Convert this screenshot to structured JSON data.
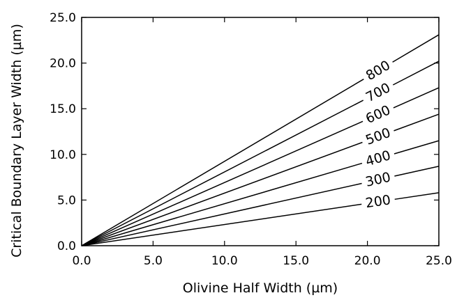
{
  "chart_data": {
    "type": "line",
    "xlabel": "Olivine Half Width (µm)",
    "ylabel": "Critical Boundary Layer Width (µm)",
    "xlim": [
      0,
      25
    ],
    "ylim": [
      0,
      25
    ],
    "xticks": [
      "0.0",
      "5.0",
      "10.0",
      "15.0",
      "20.0",
      "25.0"
    ],
    "yticks": [
      "0.0",
      "5.0",
      "10.0",
      "15.0",
      "20.0",
      "25.0"
    ],
    "grid": false,
    "series": [
      {
        "name": "200",
        "x": [
          0,
          25
        ],
        "y": [
          0,
          5.8
        ]
      },
      {
        "name": "300",
        "x": [
          0,
          25
        ],
        "y": [
          0,
          8.7
        ]
      },
      {
        "name": "400",
        "x": [
          0,
          25
        ],
        "y": [
          0,
          11.5
        ]
      },
      {
        "name": "500",
        "x": [
          0,
          25
        ],
        "y": [
          0,
          14.4
        ]
      },
      {
        "name": "600",
        "x": [
          0,
          25
        ],
        "y": [
          0,
          17.3
        ]
      },
      {
        "name": "700",
        "x": [
          0,
          25
        ],
        "y": [
          0,
          20.2
        ]
      },
      {
        "name": "800",
        "x": [
          0,
          25
        ],
        "y": [
          0,
          23.1
        ]
      }
    ]
  }
}
